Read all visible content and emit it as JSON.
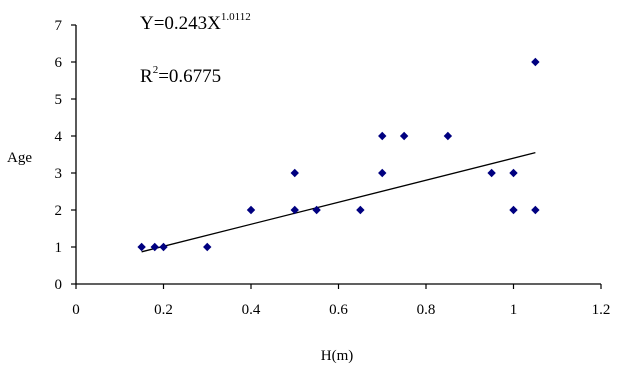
{
  "chart_data": {
    "type": "scatter",
    "xlabel": "H(m)",
    "ylabel": "Age",
    "xlim": [
      0,
      1.2
    ],
    "ylim": [
      0,
      7
    ],
    "xticks": [
      "0",
      "0.2",
      "0.4",
      "0.6",
      "0.8",
      "1",
      "1.2"
    ],
    "yticks": [
      "0",
      "1",
      "2",
      "3",
      "4",
      "5",
      "6",
      "7"
    ],
    "grid": false,
    "marker_color": "#000080",
    "points": [
      {
        "x": 0.15,
        "y": 1
      },
      {
        "x": 0.18,
        "y": 1
      },
      {
        "x": 0.2,
        "y": 1
      },
      {
        "x": 0.3,
        "y": 1
      },
      {
        "x": 0.4,
        "y": 2
      },
      {
        "x": 0.5,
        "y": 3
      },
      {
        "x": 0.5,
        "y": 2
      },
      {
        "x": 0.55,
        "y": 2
      },
      {
        "x": 0.65,
        "y": 2
      },
      {
        "x": 0.7,
        "y": 4
      },
      {
        "x": 0.7,
        "y": 3
      },
      {
        "x": 0.75,
        "y": 4
      },
      {
        "x": 0.85,
        "y": 4
      },
      {
        "x": 0.95,
        "y": 3
      },
      {
        "x": 1.0,
        "y": 3
      },
      {
        "x": 1.0,
        "y": 2
      },
      {
        "x": 1.05,
        "y": 6
      },
      {
        "x": 1.05,
        "y": 2
      }
    ],
    "trendline": {
      "equation_base": "Y=0.243X",
      "equation_exponent": "1.0112",
      "r2_base": "R",
      "r2_exponent": "2",
      "r2_value": "=0.6775",
      "coef": 0.243,
      "exponent": 1.0112,
      "x_range": [
        0.15,
        1.05
      ]
    }
  }
}
